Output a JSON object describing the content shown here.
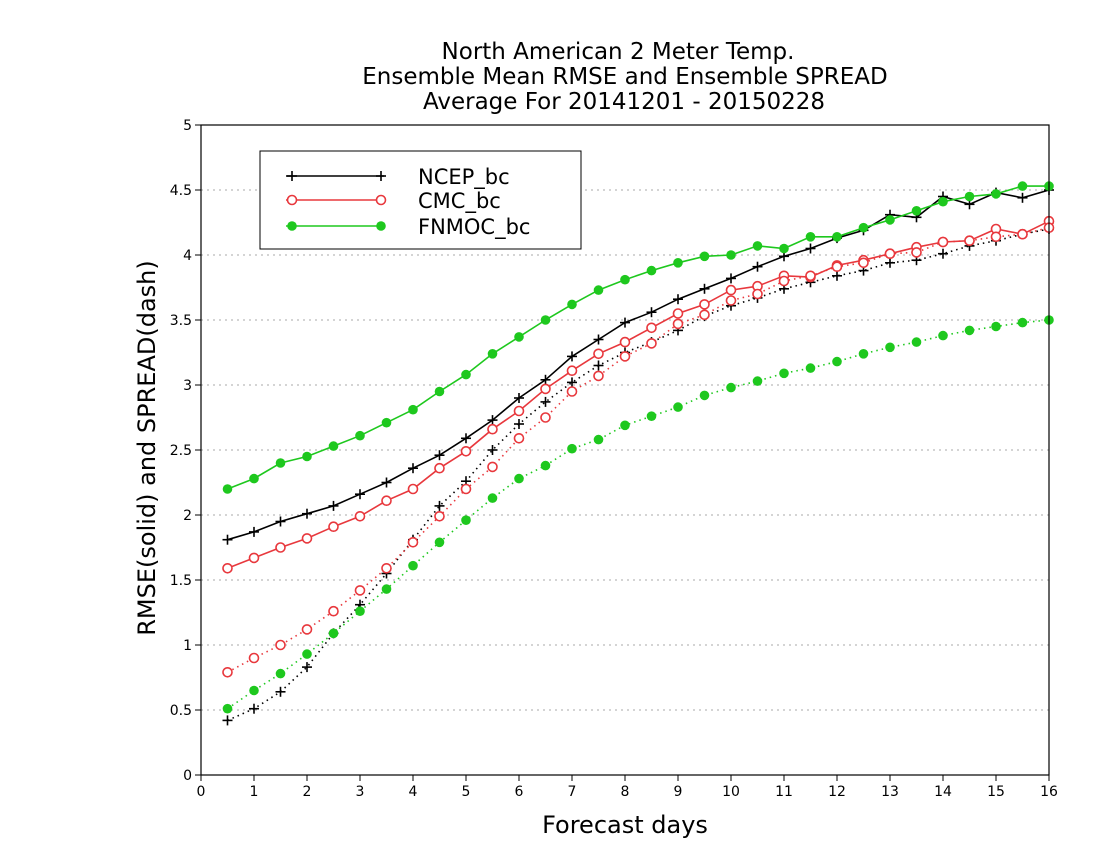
{
  "chart_data": {
    "type": "line",
    "title": [
      "North American 2 Meter Temp.",
      "Ensemble Mean RMSE and Ensemble SPREAD",
      "Average For 20141201 - 20150228"
    ],
    "xlabel": "Forecast days",
    "ylabel": "RMSE(solid) and SPREAD(dash)",
    "xlim": [
      0,
      16
    ],
    "ylim": [
      0,
      5
    ],
    "xticks": [
      "0",
      "1",
      "2",
      "3",
      "4",
      "5",
      "6",
      "7",
      "8",
      "9",
      "10",
      "11",
      "12",
      "13",
      "14",
      "15",
      "16"
    ],
    "yticks": [
      "0",
      "0.5",
      "1",
      "1.5",
      "2",
      "2.5",
      "3",
      "3.5",
      "4",
      "4.5",
      "5"
    ],
    "grid": true,
    "legend_position": "top-left",
    "x": [
      0.5,
      1.0,
      1.5,
      2.0,
      2.5,
      3.0,
      3.5,
      4.0,
      4.5,
      5.0,
      5.5,
      6.0,
      6.5,
      7.0,
      7.5,
      8.0,
      8.5,
      9.0,
      9.5,
      10.0,
      10.5,
      11.0,
      11.5,
      12.0,
      12.5,
      13.0,
      13.5,
      14.0,
      14.5,
      15.0,
      15.5,
      16.0
    ],
    "series": [
      {
        "name": "NCEP_bc",
        "color": "#000000",
        "marker": "plus",
        "rmse": [
          1.81,
          1.87,
          1.95,
          2.01,
          2.07,
          2.16,
          2.25,
          2.36,
          2.46,
          2.59,
          2.73,
          2.9,
          3.04,
          3.22,
          3.35,
          3.48,
          3.56,
          3.66,
          3.74,
          3.82,
          3.91,
          3.99,
          4.05,
          4.13,
          4.19,
          4.31,
          4.29,
          4.45,
          4.39,
          4.48,
          4.44,
          4.5
        ],
        "spread": [
          0.42,
          0.51,
          0.64,
          0.83,
          1.09,
          1.31,
          1.55,
          1.81,
          2.07,
          2.26,
          2.5,
          2.7,
          2.87,
          3.02,
          3.15,
          3.25,
          3.33,
          3.42,
          3.53,
          3.61,
          3.67,
          3.74,
          3.79,
          3.84,
          3.88,
          3.94,
          3.96,
          4.01,
          4.07,
          4.11,
          4.16,
          4.2
        ]
      },
      {
        "name": "CMC_bc",
        "color": "#e8383d",
        "marker": "open-circle",
        "rmse": [
          1.59,
          1.67,
          1.75,
          1.82,
          1.91,
          1.99,
          2.11,
          2.2,
          2.36,
          2.49,
          2.66,
          2.8,
          2.97,
          3.11,
          3.24,
          3.33,
          3.44,
          3.55,
          3.62,
          3.73,
          3.76,
          3.84,
          3.83,
          3.92,
          3.96,
          4.01,
          4.06,
          4.1,
          4.11,
          4.2,
          4.16,
          4.26
        ],
        "spread": [
          0.79,
          0.9,
          1.0,
          1.12,
          1.26,
          1.42,
          1.59,
          1.79,
          1.99,
          2.2,
          2.37,
          2.59,
          2.75,
          2.95,
          3.07,
          3.22,
          3.32,
          3.47,
          3.54,
          3.65,
          3.7,
          3.8,
          3.84,
          3.91,
          3.94,
          4.01,
          4.02,
          4.1,
          4.11,
          4.14,
          4.16,
          4.21
        ]
      },
      {
        "name": "FNMOC_bc",
        "color": "#1ec81e",
        "marker": "filled-circle",
        "rmse": [
          2.2,
          2.28,
          2.4,
          2.45,
          2.53,
          2.61,
          2.71,
          2.81,
          2.95,
          3.08,
          3.24,
          3.37,
          3.5,
          3.62,
          3.73,
          3.81,
          3.88,
          3.94,
          3.99,
          4.0,
          4.07,
          4.05,
          4.14,
          4.14,
          4.21,
          4.27,
          4.34,
          4.41,
          4.45,
          4.47,
          4.53,
          4.53
        ],
        "spread": [
          0.51,
          0.65,
          0.78,
          0.93,
          1.09,
          1.26,
          1.43,
          1.61,
          1.79,
          1.96,
          2.13,
          2.28,
          2.38,
          2.51,
          2.58,
          2.69,
          2.76,
          2.83,
          2.92,
          2.98,
          3.03,
          3.09,
          3.13,
          3.18,
          3.24,
          3.29,
          3.33,
          3.38,
          3.42,
          3.45,
          3.48,
          3.5
        ]
      }
    ]
  }
}
